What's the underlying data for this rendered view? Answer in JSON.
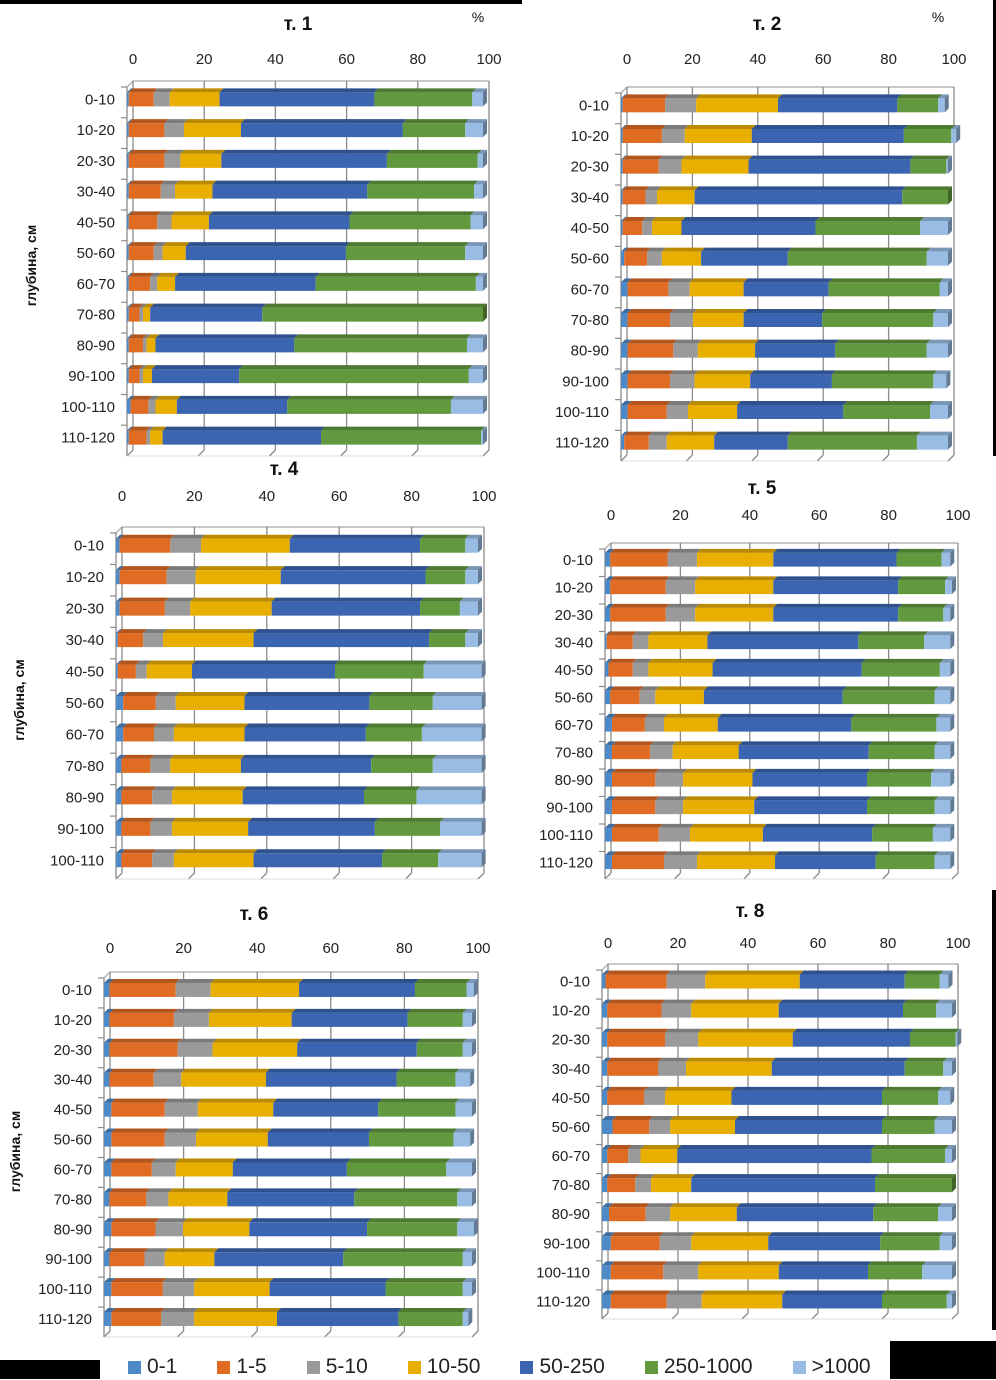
{
  "figure": {
    "y_axis_label": "глубина, см",
    "percent_label": "%"
  },
  "legend": [
    {
      "name": "0-1",
      "color": "#4e8ac8"
    },
    {
      "name": "1-5",
      "color": "#e06c24"
    },
    {
      "name": "5-10",
      "color": "#9a9a9a"
    },
    {
      "name": "10-50",
      "color": "#e8ae00"
    },
    {
      "name": "50-250",
      "color": "#3b65b0"
    },
    {
      "name": "250-1000",
      "color": "#62983e"
    },
    {
      "name": ">1000",
      "color": "#98bce4"
    }
  ],
  "chart_data": [
    {
      "type": "bar",
      "stacked": true,
      "orientation": "horizontal",
      "title": "т. 1",
      "xlabel": "%",
      "ylabel": "глубина, см",
      "xlim": [
        0,
        100
      ],
      "xticks": [
        "0",
        "20",
        "40",
        "60",
        "80",
        "100"
      ],
      "categories": [
        "0-10",
        "10-20",
        "20-30",
        "30-40",
        "40-50",
        "50-60",
        "60-70",
        "70-80",
        "80-90",
        "90-100",
        "100-110",
        "110-120"
      ],
      "series": [
        {
          "name": "0-1",
          "values": [
            0.5,
            0.5,
            0.5,
            0.5,
            0.5,
            0.5,
            0.5,
            0.5,
            0.5,
            0.5,
            1.0,
            0.5
          ]
        },
        {
          "name": "1-5",
          "values": [
            7,
            10,
            10,
            9,
            8,
            7,
            6,
            3,
            4,
            3,
            5,
            5
          ]
        },
        {
          "name": "5-10",
          "values": [
            4.5,
            5.5,
            4.5,
            4,
            4,
            2.5,
            2,
            1,
            1,
            1,
            2,
            1
          ]
        },
        {
          "name": "10-50",
          "values": [
            14,
            16,
            11.5,
            10.5,
            10.5,
            6.5,
            5,
            2,
            2.5,
            2.5,
            6,
            3.5
          ]
        },
        {
          "name": "50-250",
          "values": [
            43.5,
            45.5,
            46.5,
            43.5,
            39.5,
            45,
            39.5,
            31.5,
            39,
            24.5,
            31,
            44.5
          ]
        },
        {
          "name": "250-1000",
          "values": [
            27.5,
            17.5,
            25.5,
            30,
            34,
            33.5,
            45,
            62,
            48.5,
            64.5,
            46,
            45
          ]
        },
        {
          "name": ">1000",
          "values": [
            3,
            5,
            1.5,
            2.5,
            3.5,
            5,
            2,
            0,
            4.5,
            4,
            9,
            0.5
          ]
        }
      ]
    },
    {
      "type": "bar",
      "stacked": true,
      "orientation": "horizontal",
      "title": "т. 2",
      "xlabel": "%",
      "xlim": [
        0,
        100
      ],
      "xticks": [
        "0",
        "20",
        "40",
        "60",
        "80",
        "100"
      ],
      "categories": [
        "0-10",
        "10-20",
        "20-30",
        "30-40",
        "40-50",
        "50-60",
        "60-70",
        "70-80",
        "80-90",
        "90-100",
        "100-110",
        "110-120"
      ],
      "series": [
        {
          "name": "0-1",
          "values": [
            0.5,
            0.5,
            0.5,
            0.5,
            0.5,
            1,
            2,
            2,
            2,
            2,
            2,
            1
          ]
        },
        {
          "name": "1-5",
          "values": [
            13,
            12,
            11,
            7,
            6,
            7,
            12.5,
            13,
            14,
            13,
            12,
            7.5
          ]
        },
        {
          "name": "5-10",
          "values": [
            9.5,
            7,
            7,
            3.5,
            3,
            4.5,
            6.5,
            7,
            7.5,
            7.5,
            6.5,
            5.5
          ]
        },
        {
          "name": "10-50",
          "values": [
            25,
            20.5,
            20.5,
            11.5,
            9,
            12,
            16.5,
            15.5,
            17.5,
            17,
            15,
            14.5
          ]
        },
        {
          "name": "50-250",
          "values": [
            36.5,
            46.5,
            49.5,
            63.5,
            41,
            26.5,
            26,
            24,
            24.5,
            25,
            32.5,
            22.5
          ]
        },
        {
          "name": "250-1000",
          "values": [
            12.5,
            14.5,
            11,
            14,
            32,
            42.5,
            34,
            34,
            28,
            31,
            26.5,
            39.5
          ]
        },
        {
          "name": ">1000",
          "values": [
            2,
            1.5,
            0.5,
            0,
            8.5,
            6.5,
            2.5,
            4.5,
            6.5,
            4,
            5.5,
            9.5
          ]
        }
      ]
    },
    {
      "type": "bar",
      "stacked": true,
      "orientation": "horizontal",
      "title": "т. 4",
      "xlabel": "",
      "ylabel": "глубина, см",
      "xlim": [
        0,
        100
      ],
      "xticks": [
        "0",
        "20",
        "40",
        "60",
        "80",
        "100"
      ],
      "categories": [
        "0-10",
        "10-20",
        "20-30",
        "30-40",
        "40-50",
        "50-60",
        "60-70",
        "70-80",
        "80-90",
        "90-100",
        "100-110"
      ],
      "series": [
        {
          "name": "0-1",
          "values": [
            1,
            1,
            1,
            0.5,
            0.5,
            2,
            2,
            1.5,
            1.5,
            1.5,
            1.5
          ]
        },
        {
          "name": "1-5",
          "values": [
            14,
            13,
            12.5,
            7,
            5,
            9,
            8.5,
            8,
            8.5,
            8,
            8.5
          ]
        },
        {
          "name": "5-10",
          "values": [
            8.5,
            8,
            7,
            5.5,
            3,
            5.5,
            5.5,
            5.5,
            5.5,
            6,
            6
          ]
        },
        {
          "name": "10-50",
          "values": [
            24.5,
            23.5,
            22.5,
            25,
            12.5,
            19,
            19.5,
            19.5,
            19.5,
            21,
            22
          ]
        },
        {
          "name": "50-250",
          "values": [
            36,
            40,
            41,
            48.5,
            39.5,
            34.5,
            33.5,
            36,
            33.5,
            35,
            35.5
          ]
        },
        {
          "name": "250-1000",
          "values": [
            12.5,
            11,
            11,
            10,
            24.5,
            17.5,
            15.5,
            17,
            14.5,
            18,
            15.5
          ]
        },
        {
          "name": ">1000",
          "values": [
            3.5,
            3.5,
            5,
            3.5,
            16,
            13.5,
            16.5,
            13.5,
            18,
            11.5,
            12
          ]
        }
      ]
    },
    {
      "type": "bar",
      "stacked": true,
      "orientation": "horizontal",
      "title": "т. 5",
      "xlabel": "",
      "xlim": [
        0,
        100
      ],
      "xticks": [
        "0",
        "20",
        "40",
        "60",
        "80",
        "100"
      ],
      "categories": [
        "0-10",
        "10-20",
        "20-30",
        "30-40",
        "40-50",
        "50-60",
        "60-70",
        "70-80",
        "80-90",
        "90-100",
        "100-110",
        "110-120"
      ],
      "series": [
        {
          "name": "0-1",
          "values": [
            1.5,
            1.5,
            1.5,
            0.5,
            1,
            1.5,
            2,
            2,
            2,
            2,
            2,
            2
          ]
        },
        {
          "name": "1-5",
          "values": [
            16.5,
            16,
            16,
            7.5,
            7,
            8.5,
            9.5,
            11,
            12.5,
            12.5,
            13.5,
            15
          ]
        },
        {
          "name": "5-10",
          "values": [
            8.5,
            8.5,
            8.5,
            4.5,
            4.5,
            4.5,
            5.5,
            6.5,
            8,
            8,
            9,
            9.5
          ]
        },
        {
          "name": "10-50",
          "values": [
            22,
            22.5,
            22.5,
            17,
            18.5,
            14,
            15.5,
            19,
            20,
            20.5,
            21,
            22.5
          ]
        },
        {
          "name": "50-250",
          "values": [
            35.5,
            36,
            36,
            43.5,
            43,
            40,
            38.5,
            37.5,
            33,
            32.5,
            31.5,
            29
          ]
        },
        {
          "name": "250-1000",
          "values": [
            13,
            13.5,
            13,
            19,
            22.5,
            26.5,
            24.5,
            19,
            18.5,
            19.5,
            17.5,
            17
          ]
        },
        {
          "name": ">1000",
          "values": [
            2.5,
            2,
            2,
            7.5,
            3,
            4.5,
            4,
            4.5,
            5.5,
            4.5,
            5,
            4.5
          ]
        }
      ]
    },
    {
      "type": "bar",
      "stacked": true,
      "orientation": "horizontal",
      "title": "т. 6",
      "xlabel": "",
      "ylabel": "глубина, см",
      "xlim": [
        0,
        100
      ],
      "xticks": [
        "0",
        "20",
        "40",
        "60",
        "80",
        "100"
      ],
      "categories": [
        "0-10",
        "10-20",
        "20-30",
        "30-40",
        "40-50",
        "50-60",
        "60-70",
        "70-80",
        "80-90",
        "90-100",
        "100-110",
        "110-120"
      ],
      "series": [
        {
          "name": "0-1",
          "values": [
            1.5,
            1.5,
            1.5,
            1.5,
            2,
            2,
            2,
            1.5,
            2,
            1.5,
            2,
            2
          ]
        },
        {
          "name": "1-5",
          "values": [
            18,
            17.5,
            18.5,
            12,
            14.5,
            14.5,
            11,
            10,
            12,
            9.5,
            14,
            13.5
          ]
        },
        {
          "name": "5-10",
          "values": [
            9.5,
            9.5,
            9.5,
            7.5,
            9,
            8.5,
            6.5,
            6,
            7.5,
            5.5,
            8.5,
            9
          ]
        },
        {
          "name": "10-50",
          "values": [
            24,
            22.5,
            23,
            23,
            20.5,
            19.5,
            15.5,
            16,
            18,
            13.5,
            20.5,
            22.5
          ]
        },
        {
          "name": "50-250",
          "values": [
            31.5,
            31.5,
            32.5,
            35.5,
            28.5,
            27.5,
            31,
            34.5,
            32,
            35,
            31.5,
            33
          ]
        },
        {
          "name": "250-1000",
          "values": [
            14,
            15,
            12.5,
            16,
            21,
            23,
            27,
            28,
            24.5,
            32.5,
            21,
            17.5
          ]
        },
        {
          "name": ">1000",
          "values": [
            2,
            2.5,
            2.5,
            4,
            4.5,
            4.5,
            7,
            4,
            4.5,
            2.5,
            2.5,
            1.5
          ]
        }
      ]
    },
    {
      "type": "bar",
      "stacked": true,
      "orientation": "horizontal",
      "title": "т. 8",
      "xlabel": "",
      "xlim": [
        0,
        100
      ],
      "xticks": [
        "0",
        "20",
        "40",
        "60",
        "80",
        "100"
      ],
      "categories": [
        "0-10",
        "10-20",
        "20-30",
        "30-40",
        "40-50",
        "50-60",
        "60-70",
        "70-80",
        "80-90",
        "90-100",
        "100-110",
        "110-120"
      ],
      "series": [
        {
          "name": "0-1",
          "values": [
            1,
            1.5,
            1.5,
            1.5,
            1.5,
            3,
            1.5,
            1.5,
            2,
            2.5,
            2.5,
            2.5
          ]
        },
        {
          "name": "1-5",
          "values": [
            17.5,
            15.5,
            16.5,
            14.5,
            10.5,
            10.5,
            6,
            8,
            10.5,
            14,
            15,
            16
          ]
        },
        {
          "name": "5-10",
          "values": [
            11,
            8.5,
            9.5,
            8,
            6,
            6,
            3.5,
            4.5,
            7,
            9,
            10,
            10
          ]
        },
        {
          "name": "10-50",
          "values": [
            27,
            25,
            27,
            24.5,
            19,
            18.5,
            10.5,
            11.5,
            19,
            22,
            23,
            23
          ]
        },
        {
          "name": "50-250",
          "values": [
            30,
            35.5,
            33.5,
            38,
            43,
            42,
            55.5,
            52.5,
            39,
            32,
            25.5,
            28.5
          ]
        },
        {
          "name": "250-1000",
          "values": [
            10,
            9.5,
            13,
            11,
            16,
            15,
            21,
            22,
            18.5,
            17,
            15.5,
            18.5
          ]
        },
        {
          "name": ">1000",
          "values": [
            2.5,
            4.5,
            0.5,
            2.5,
            3.5,
            5,
            2,
            0,
            4,
            3.5,
            8.5,
            1.5
          ]
        }
      ]
    }
  ]
}
